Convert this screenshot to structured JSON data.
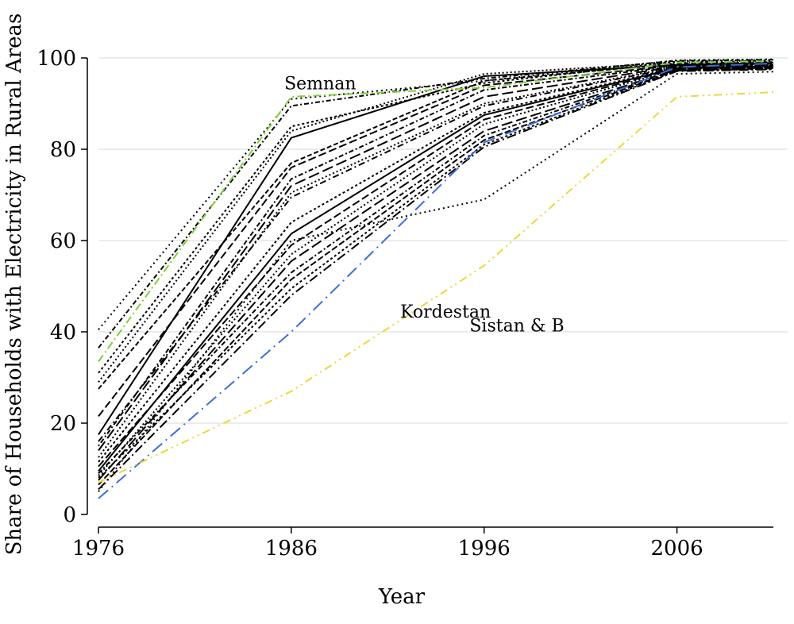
{
  "chart_data": {
    "type": "line",
    "title": "",
    "xlabel": "Year",
    "ylabel": "Share of Households with Electricity in Rural Areas",
    "x": [
      1976,
      1986,
      1996,
      2006,
      2011
    ],
    "xticks": [
      1976,
      1986,
      1996,
      2006
    ],
    "xlim": [
      1976,
      2011
    ],
    "yticks": [
      0,
      20,
      40,
      60,
      80,
      100
    ],
    "ylim": [
      0,
      100
    ],
    "grid": "horizontal",
    "annotations": [
      {
        "text": "Semnan",
        "x": 1987.5,
        "y": 94.5
      },
      {
        "text": "Kordestan",
        "x": 1994,
        "y": 44.5
      },
      {
        "text": "Sistan & B",
        "x": 1997.7,
        "y": 41.5
      }
    ],
    "series": [
      {
        "values": [
          33.5,
          91.5,
          93.5,
          99.0,
          99.3
        ],
        "color": "#7fcf3f",
        "dash": "10,4,2,4"
      },
      {
        "values": [
          3.5,
          40.0,
          81.5,
          98.0,
          98.8
        ],
        "color": "#3a6fd8",
        "dash": "16,6,2,6"
      },
      {
        "values": [
          7.0,
          27.0,
          54.5,
          91.5,
          92.5
        ],
        "color": "#ecd836",
        "dash": "10,5,2,5,2,5"
      },
      {
        "values": [
          40.5,
          91.0,
          95.0,
          99.5,
          99.7
        ],
        "color": "#000000",
        "dash": "2,4"
      },
      {
        "values": [
          36.5,
          89.5,
          95.5,
          99.4,
          99.6
        ],
        "color": "#000000",
        "dash": "6,3,2,3"
      },
      {
        "values": [
          31.0,
          85.0,
          94.5,
          99.2,
          99.4
        ],
        "color": "#000000",
        "dash": "3,3"
      },
      {
        "values": [
          29.0,
          84.0,
          96.5,
          99.0,
          99.3
        ],
        "color": "#000000",
        "dash": "2,3"
      },
      {
        "values": [
          27.5,
          77.0,
          95.0,
          98.8,
          99.1
        ],
        "color": "#000000",
        "dash": "6,3"
      },
      {
        "values": [
          17.5,
          82.5,
          96.0,
          98.5,
          98.9
        ],
        "color": "#000000",
        "dash": ""
      },
      {
        "values": [
          21.5,
          76.0,
          94.0,
          98.4,
          98.8
        ],
        "color": "#000000",
        "dash": "10,4"
      },
      {
        "values": [
          15.0,
          73.5,
          93.0,
          98.3,
          98.7
        ],
        "color": "#000000",
        "dash": "2,3,6,3"
      },
      {
        "values": [
          14.0,
          72.0,
          91.5,
          98.2,
          98.6
        ],
        "color": "#000000",
        "dash": "14,5"
      },
      {
        "values": [
          12.5,
          70.5,
          90.0,
          98.1,
          98.5
        ],
        "color": "#000000",
        "dash": "2,3"
      },
      {
        "values": [
          16.0,
          69.5,
          89.5,
          98.0,
          98.4
        ],
        "color": "#000000",
        "dash": "8,4,2,4"
      },
      {
        "values": [
          11.5,
          64.0,
          88.0,
          97.9,
          98.3
        ],
        "color": "#000000",
        "dash": "3,3"
      },
      {
        "values": [
          9.5,
          61.5,
          87.5,
          97.8,
          98.2
        ],
        "color": "#000000",
        "dash": ""
      },
      {
        "values": [
          10.5,
          59.0,
          86.5,
          97.7,
          98.1
        ],
        "color": "#000000",
        "dash": "10,4"
      },
      {
        "values": [
          8.5,
          57.0,
          85.5,
          97.6,
          98.0
        ],
        "color": "#000000",
        "dash": "2,3"
      },
      {
        "values": [
          7.5,
          55.5,
          84.0,
          97.5,
          97.9
        ],
        "color": "#000000",
        "dash": "14,5"
      },
      {
        "values": [
          9.0,
          53.0,
          83.0,
          97.4,
          97.8
        ],
        "color": "#000000",
        "dash": "6,3,2,3"
      },
      {
        "values": [
          6.5,
          51.5,
          82.0,
          97.3,
          97.7
        ],
        "color": "#000000",
        "dash": "8,3"
      },
      {
        "values": [
          8.0,
          49.5,
          81.0,
          97.2,
          97.6
        ],
        "color": "#000000",
        "dash": "3,3"
      },
      {
        "values": [
          5.5,
          48.0,
          80.5,
          97.1,
          97.5
        ],
        "color": "#000000",
        "dash": "12,4,2,4"
      },
      {
        "values": [
          5.0,
          60.0,
          69.0,
          96.5,
          97.0
        ],
        "color": "#000000",
        "dash": "2,4"
      }
    ]
  }
}
